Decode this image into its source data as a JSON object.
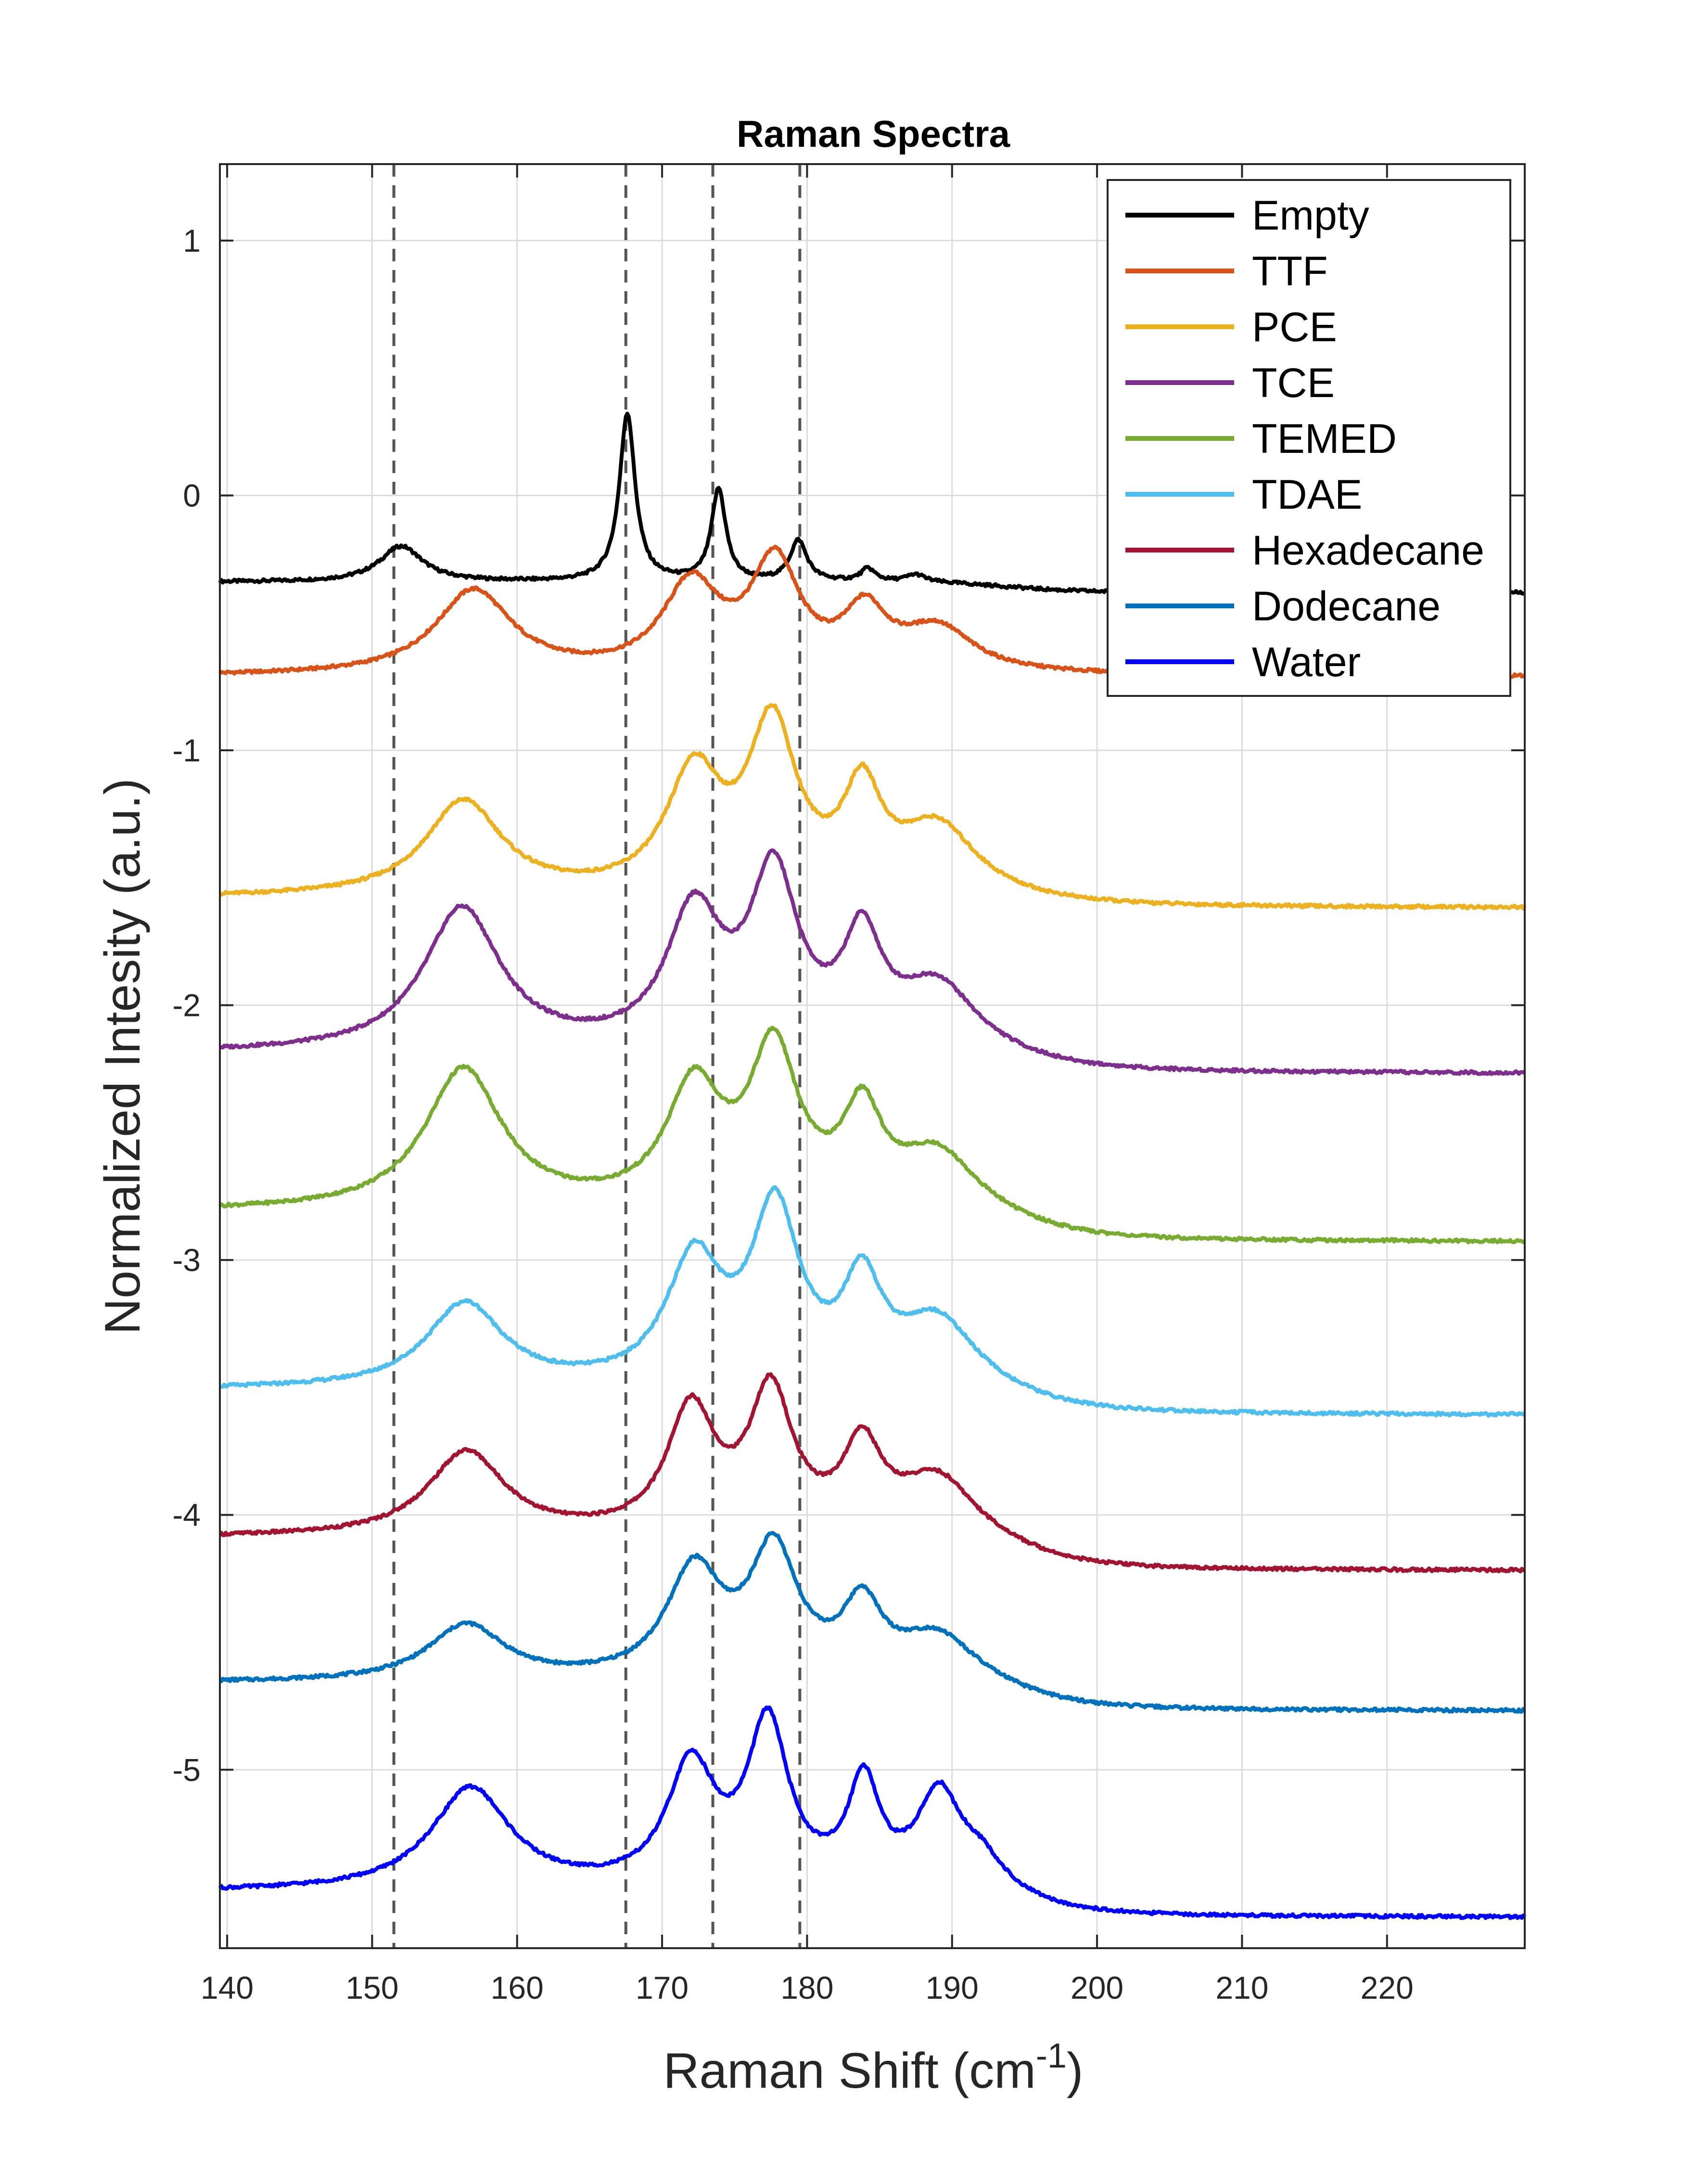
{
  "chart_data": {
    "type": "line",
    "title": "Raman Spectra",
    "xlabel": "Raman Shift (cm",
    "xlabel_superscript": "-1",
    "xlabel_suffix": ")",
    "ylabel": "Normalized Intesity (a.u.)",
    "xlim": [
      139.5,
      229.5
    ],
    "ylim": [
      -5.7,
      1.3
    ],
    "xticks": [
      140,
      150,
      160,
      170,
      180,
      190,
      200,
      210,
      220
    ],
    "yticks": [
      -5,
      -4,
      -3,
      -2,
      -1,
      0,
      1
    ],
    "xtick_labels": [
      "140",
      "150",
      "160",
      "170",
      "180",
      "190",
      "200",
      "210",
      "220"
    ],
    "ytick_labels": [
      "-5",
      "-4",
      "-3",
      "-2",
      "-1",
      "0",
      "1"
    ],
    "grid": true,
    "legend_position": "top-right",
    "reference_lines": [
      151.5,
      167.5,
      173.5,
      179.5
    ],
    "series": [
      {
        "name": "Empty",
        "color": "#000000",
        "baseline": -0.34,
        "tail": -0.38,
        "peaks": [
          [
            152,
            0.14,
            1.8
          ],
          [
            167.6,
            0.66,
            0.65
          ],
          [
            173.9,
            0.36,
            0.6
          ],
          [
            179.4,
            0.16,
            0.7
          ],
          [
            184.2,
            0.05,
            0.6
          ],
          [
            187.5,
            0.03,
            0.8
          ]
        ]
      },
      {
        "name": "TTF",
        "color": "#D95319",
        "baseline": -0.71,
        "tail": -0.71,
        "peaks": [
          [
            157,
            0.33,
            3.2
          ],
          [
            172,
            0.34,
            2.4
          ],
          [
            177.8,
            0.42,
            2.0
          ],
          [
            184,
            0.22,
            1.8
          ],
          [
            189,
            0.17,
            3.0
          ]
        ]
      },
      {
        "name": "PCE",
        "color": "#EDB120",
        "baseline": -1.58,
        "tail": -1.62,
        "peaks": [
          [
            156.3,
            0.37,
            3.2
          ],
          [
            172.2,
            0.46,
            2.3
          ],
          [
            177.6,
            0.64,
            2.0
          ],
          [
            183.8,
            0.37,
            1.6
          ],
          [
            189,
            0.26,
            3.2
          ]
        ]
      },
      {
        "name": "TCE",
        "color": "#7E2F8E",
        "baseline": -2.19,
        "tail": -2.27,
        "peaks": [
          [
            156.2,
            0.56,
            3.2
          ],
          [
            172.2,
            0.52,
            2.3
          ],
          [
            177.7,
            0.66,
            2.0
          ],
          [
            183.8,
            0.4,
            1.6
          ],
          [
            189,
            0.25,
            3.2
          ]
        ]
      },
      {
        "name": "TEMED",
        "color": "#77AC30",
        "baseline": -2.81,
        "tail": -2.93,
        "peaks": [
          [
            156.3,
            0.55,
            3.2
          ],
          [
            172.2,
            0.46,
            2.3
          ],
          [
            177.7,
            0.6,
            2.0
          ],
          [
            183.8,
            0.35,
            1.6
          ],
          [
            189,
            0.22,
            3.2
          ]
        ]
      },
      {
        "name": "TDAE",
        "color": "#4DBEEE",
        "baseline": -3.51,
        "tail": -3.61,
        "peaks": [
          [
            156.4,
            0.33,
            3.2
          ],
          [
            172.2,
            0.48,
            2.3
          ],
          [
            177.8,
            0.67,
            2.0
          ],
          [
            183.8,
            0.37,
            1.6
          ],
          [
            189,
            0.26,
            3.2
          ]
        ]
      },
      {
        "name": "Hexadecane",
        "color": "#A2142F",
        "baseline": -4.09,
        "tail": -4.22,
        "peaks": [
          [
            156.5,
            0.33,
            3.2
          ],
          [
            172,
            0.48,
            2.0
          ],
          [
            177.5,
            0.54,
            1.8
          ],
          [
            183.8,
            0.32,
            1.6
          ],
          [
            189,
            0.23,
            3.2
          ]
        ]
      },
      {
        "name": "Dodecane",
        "color": "#0072BD",
        "baseline": -4.66,
        "tail": -4.77,
        "peaks": [
          [
            156.5,
            0.22,
            3.2
          ],
          [
            172.2,
            0.42,
            2.3
          ],
          [
            177.7,
            0.49,
            2.0
          ],
          [
            183.8,
            0.27,
            1.6
          ],
          [
            189,
            0.18,
            3.2
          ]
        ]
      },
      {
        "name": "Water",
        "color": "#0000FF",
        "baseline": -5.48,
        "tail": -5.58,
        "peaks": [
          [
            156.8,
            0.4,
            3.3
          ],
          [
            172,
            0.47,
            2.0
          ],
          [
            177.3,
            0.63,
            1.7
          ],
          [
            183.9,
            0.4,
            1.3
          ],
          [
            189.1,
            0.36,
            1.8
          ],
          [
            192,
            0.12,
            2.0
          ]
        ]
      }
    ]
  }
}
